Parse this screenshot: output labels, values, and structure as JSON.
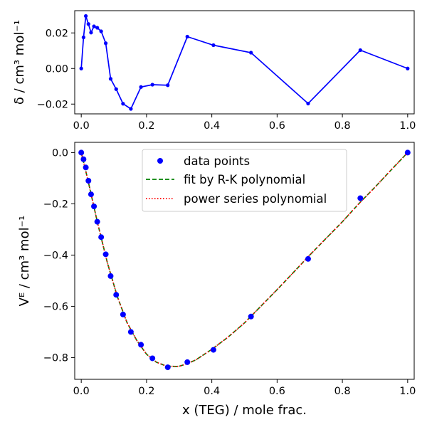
{
  "colors": {
    "points": "#0000ff",
    "residual_line": "#0000ff",
    "rk_fit": "#008000",
    "power_series": "#ff0000",
    "axes": "#000000",
    "background": "#ffffff"
  },
  "chart_data": [
    {
      "type": "line",
      "panel": "top",
      "ylabel": "δ / cm³ mol⁻¹",
      "xlim": [
        -0.02,
        1.02
      ],
      "ylim": [
        -0.0255,
        0.0325
      ],
      "x_ticks": [
        0.0,
        0.2,
        0.4,
        0.6,
        0.8,
        1.0
      ],
      "x_tick_labels": [
        "0.0",
        "0.2",
        "0.4",
        "0.6",
        "0.8",
        "1.0"
      ],
      "y_ticks": [
        -0.02,
        0.0,
        0.02
      ],
      "y_tick_labels": [
        "−0.02",
        "0.00",
        "0.02"
      ],
      "grid": false,
      "series": [
        {
          "marker": "circle",
          "line": "solid",
          "x": [
            0.0,
            0.007,
            0.014,
            0.022,
            0.03,
            0.039,
            0.049,
            0.061,
            0.075,
            0.09,
            0.107,
            0.128,
            0.152,
            0.183,
            0.218,
            0.265,
            0.325,
            0.405,
            0.52,
            0.695,
            0.855,
            1.0
          ],
          "y": [
            0.0,
            0.0175,
            0.0295,
            0.025,
            0.0202,
            0.0237,
            0.0229,
            0.0209,
            0.0142,
            -0.0058,
            -0.0116,
            -0.0198,
            -0.0227,
            -0.0104,
            -0.0091,
            -0.0094,
            0.0179,
            0.0131,
            0.0089,
            -0.0197,
            0.0103,
            0.0
          ]
        }
      ]
    },
    {
      "type": "scatter",
      "panel": "bottom",
      "xlabel": "x (TEG) / mole frac.",
      "ylabel": "Vᴱ / cm³ mol⁻¹",
      "xlim": [
        -0.02,
        1.02
      ],
      "ylim": [
        -0.885,
        0.04
      ],
      "x_ticks": [
        0.0,
        0.2,
        0.4,
        0.6,
        0.8,
        1.0
      ],
      "x_tick_labels": [
        "0.0",
        "0.2",
        "0.4",
        "0.6",
        "0.8",
        "1.0"
      ],
      "y_ticks": [
        0.0,
        -0.2,
        -0.4,
        -0.6,
        -0.8
      ],
      "y_tick_labels": [
        "0.0",
        "−0.2",
        "−0.4",
        "−0.6",
        "−0.8"
      ],
      "grid": false,
      "legend_position": "top-center",
      "legend": [
        "data points",
        "fit by R-K polynomial",
        "power series polynomial"
      ],
      "points": {
        "x": [
          0.0,
          0.007,
          0.014,
          0.022,
          0.03,
          0.039,
          0.049,
          0.061,
          0.075,
          0.09,
          0.107,
          0.128,
          0.152,
          0.183,
          0.218,
          0.265,
          0.325,
          0.405,
          0.52,
          0.695,
          0.855,
          1.0
        ],
        "y": [
          0.0,
          -0.026,
          -0.058,
          -0.11,
          -0.163,
          -0.21,
          -0.27,
          -0.33,
          -0.397,
          -0.482,
          -0.555,
          -0.632,
          -0.7,
          -0.75,
          -0.803,
          -0.838,
          -0.818,
          -0.77,
          -0.64,
          -0.415,
          -0.178,
          0.0
        ]
      },
      "fit_curve": {
        "x": [
          0.0,
          0.02,
          0.05,
          0.08,
          0.11,
          0.14,
          0.17,
          0.2,
          0.23,
          0.26,
          0.29,
          0.3,
          0.32,
          0.35,
          0.4,
          0.45,
          0.5,
          0.55,
          0.6,
          0.65,
          0.7,
          0.75,
          0.8,
          0.85,
          0.9,
          0.95,
          1.0
        ],
        "y": [
          0.0,
          -0.105,
          -0.275,
          -0.43,
          -0.56,
          -0.663,
          -0.733,
          -0.787,
          -0.818,
          -0.833,
          -0.835,
          -0.834,
          -0.826,
          -0.81,
          -0.768,
          -0.72,
          -0.665,
          -0.6,
          -0.535,
          -0.468,
          -0.4,
          -0.335,
          -0.27,
          -0.2,
          -0.135,
          -0.067,
          0.0
        ]
      }
    }
  ]
}
